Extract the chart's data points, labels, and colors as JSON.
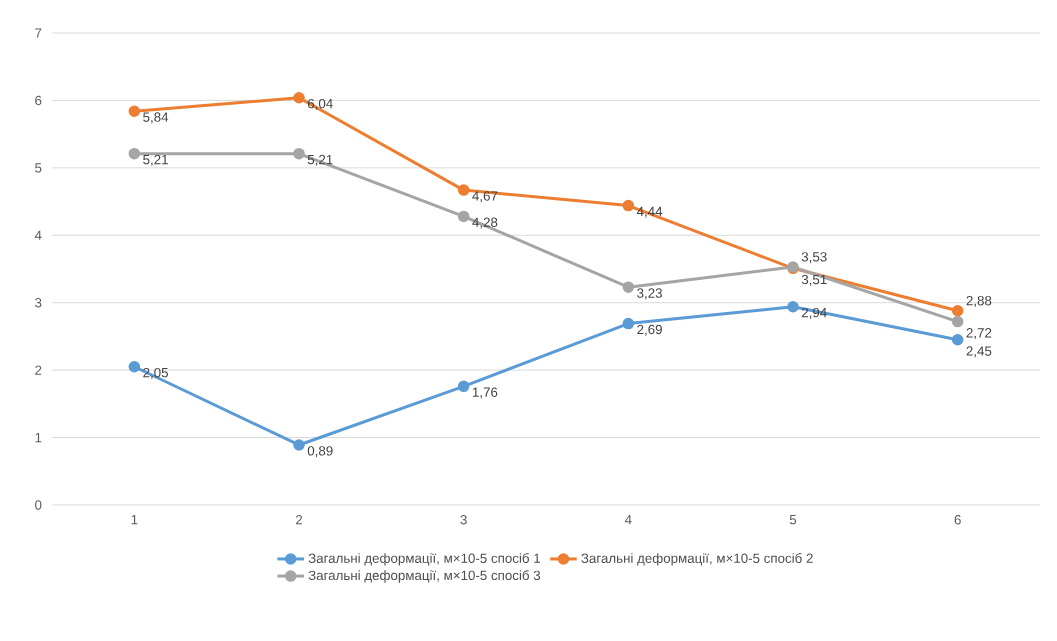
{
  "chart_data": {
    "type": "line",
    "categories": [
      "1",
      "2",
      "3",
      "4",
      "5",
      "6"
    ],
    "series": [
      {
        "name": "Загальні деформації, м×10-5 спосіб 1",
        "color": "#5b9bd5",
        "values": [
          2.05,
          0.89,
          1.76,
          2.69,
          2.94,
          2.45
        ],
        "value_labels": [
          "2,05",
          "0,89",
          "1,76",
          "2,69",
          "2,94",
          "2,45"
        ]
      },
      {
        "name": "Загальні деформації, м×10-5 спосіб 2",
        "color": "#ed7d31",
        "values": [
          5.84,
          6.04,
          4.67,
          4.44,
          3.51,
          2.88
        ],
        "value_labels": [
          "5,84",
          "6,04",
          "4,67",
          "4,44",
          "3,51",
          "2,88"
        ]
      },
      {
        "name": "Загальні деформації, м×10-5 спосіб 3",
        "color": "#a5a5a5",
        "values": [
          5.21,
          5.21,
          4.28,
          3.23,
          3.53,
          2.72
        ],
        "value_labels": [
          "5,21",
          "5,21",
          "4,28",
          "3,23",
          "3,53",
          "2,72"
        ]
      }
    ],
    "ylim": [
      0,
      7
    ],
    "yticks": [
      0,
      1,
      2,
      3,
      4,
      5,
      6,
      7
    ],
    "grid": "y",
    "legend": "bottom",
    "marker": "circle",
    "line_style": "solid"
  }
}
